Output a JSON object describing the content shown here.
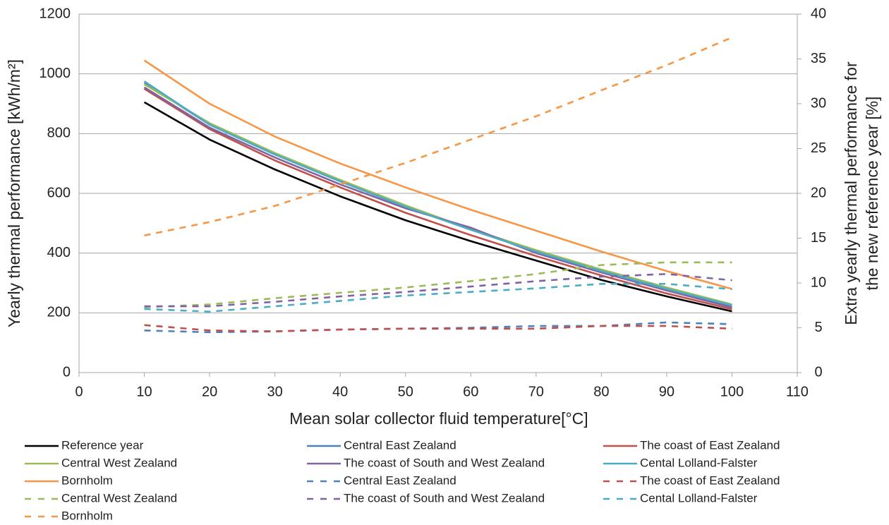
{
  "chart_data": {
    "type": "line",
    "xlabel": "Mean solar collector fluid temperature[°C]",
    "ylabel": "Yearly thermal performance [kWh/m²]",
    "y2label": [
      "Extra yearly thermal performance for",
      "the new reference year [%]"
    ],
    "x": [
      10,
      20,
      30,
      40,
      50,
      60,
      70,
      80,
      90,
      100
    ],
    "xlim": [
      0,
      110
    ],
    "xticks": [
      0,
      10,
      20,
      30,
      40,
      50,
      60,
      70,
      80,
      90,
      100,
      110
    ],
    "ylim": [
      0,
      1200
    ],
    "yticks": [
      0,
      200,
      400,
      600,
      800,
      1000,
      1200
    ],
    "y2lim": [
      0,
      40
    ],
    "y2ticks": [
      0,
      5,
      10,
      15,
      20,
      25,
      30,
      35,
      40
    ],
    "grid": true,
    "series": [
      {
        "name": "Reference year",
        "color": "#000000",
        "dashed": false,
        "values": [
          905,
          780,
          680,
          590,
          510,
          440,
          375,
          310,
          255,
          205
        ]
      },
      {
        "name": "Central East Zealand",
        "color": "#4f81bd",
        "dashed": false,
        "values": [
          970,
          830,
          730,
          640,
          555,
          480,
          405,
          340,
          280,
          222
        ]
      },
      {
        "name": "The coast of East Zealand",
        "color": "#c0504d",
        "dashed": false,
        "values": [
          950,
          815,
          710,
          620,
          535,
          460,
          390,
          325,
          265,
          212
        ]
      },
      {
        "name": "Central West Zealand",
        "color": "#9bbb59",
        "dashed": false,
        "values": [
          965,
          835,
          735,
          645,
          560,
          480,
          410,
          345,
          285,
          228
        ]
      },
      {
        "name": "The coast of South and West Zealand",
        "color": "#8064a2",
        "dashed": false,
        "values": [
          955,
          820,
          720,
          630,
          550,
          485,
          400,
          335,
          275,
          218
        ]
      },
      {
        "name": "Cental Lolland-Falster",
        "color": "#4bacc6",
        "dashed": false,
        "values": [
          975,
          830,
          730,
          640,
          555,
          478,
          405,
          340,
          280,
          225
        ]
      },
      {
        "name": "Bornholm",
        "color": "#f79646",
        "dashed": false,
        "values": [
          1045,
          900,
          790,
          700,
          620,
          545,
          475,
          405,
          340,
          280
        ]
      },
      {
        "name": "Central East Zealand",
        "color": "#4f81bd",
        "dashed": true,
        "axis": "y2",
        "values": [
          4.7,
          4.5,
          4.6,
          4.8,
          4.9,
          5.0,
          5.2,
          5.2,
          5.6,
          5.4
        ]
      },
      {
        "name": "The coast of East Zealand",
        "color": "#c0504d",
        "dashed": true,
        "axis": "y2",
        "values": [
          5.3,
          4.7,
          4.6,
          4.8,
          4.9,
          4.9,
          4.9,
          5.2,
          5.2,
          4.9
        ]
      },
      {
        "name": "Central West Zealand",
        "color": "#9bbb59",
        "dashed": true,
        "axis": "y2",
        "values": [
          7.3,
          7.6,
          8.3,
          8.9,
          9.5,
          10.2,
          11.0,
          12.0,
          12.3,
          12.3
        ]
      },
      {
        "name": "The coast of South and West Zealand",
        "color": "#8064a2",
        "dashed": true,
        "axis": "y2",
        "values": [
          7.4,
          7.4,
          7.9,
          8.5,
          9.0,
          9.6,
          10.2,
          10.7,
          11.0,
          10.3
        ]
      },
      {
        "name": "Cental Lolland-Falster",
        "color": "#4bacc6",
        "dashed": true,
        "axis": "y2",
        "values": [
          7.1,
          6.8,
          7.4,
          8.0,
          8.6,
          9.0,
          9.4,
          9.9,
          9.9,
          9.3
        ]
      },
      {
        "name": "Bornholm",
        "color": "#f79646",
        "dashed": true,
        "axis": "y2",
        "values": [
          15.3,
          16.8,
          18.6,
          21.0,
          23.4,
          26.0,
          28.6,
          31.5,
          34.3,
          37.4
        ]
      }
    ]
  }
}
